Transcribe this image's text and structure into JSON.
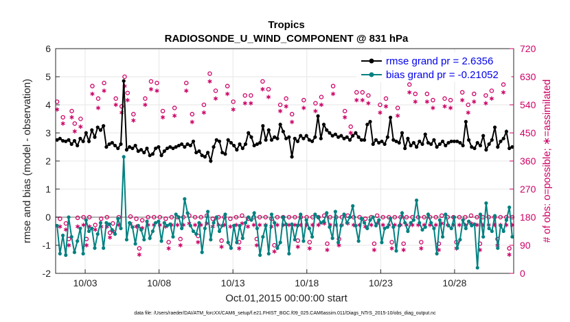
{
  "chart_data": {
    "type": "line",
    "title": "Tropics",
    "subtitle": "RADIOSONDE_U_WIND_COMPONENT @ 831 hPa",
    "xlabel": "Oct.01,2015 00:00:00 start",
    "ylabel_left": "rmse and bias (model - observation)",
    "ylabel_right": "# of obs: o=possible; ∗=assimilated",
    "footnote": "data file: /Users/raeder/DAI/ATM_forcXX/CAM6_setup/f.e21.FHIST_BGC.f09_025.CAM6assim.011/Diags_NTrS_2015-10/obs_diag_output.nc",
    "x_ticks": [
      "10/03",
      "10/08",
      "10/13",
      "10/18",
      "10/23",
      "10/28"
    ],
    "x_tick_days": [
      3,
      8,
      13,
      18,
      23,
      28
    ],
    "xlim_days": [
      1,
      32
    ],
    "ylim_left": [
      -2,
      6
    ],
    "yticks_left": [
      "-2",
      "-1",
      "0",
      "1",
      "2",
      "3",
      "4",
      "5",
      "6"
    ],
    "ylim_right": [
      0,
      720
    ],
    "yticks_right": [
      "0",
      "90",
      "180",
      "270",
      "360",
      "450",
      "540",
      "630",
      "720"
    ],
    "legend": [
      {
        "label": "rmse grand pr = 2.6356",
        "color": "#000000"
      },
      {
        "label": "bias grand pr = -0.21052",
        "color": "#008080"
      }
    ],
    "series": [
      {
        "name": "rmse",
        "axis": "left",
        "color": "#000000",
        "values": [
          2.75,
          2.8,
          2.72,
          2.7,
          2.75,
          2.6,
          2.72,
          2.55,
          2.8,
          2.7,
          3.0,
          2.7,
          3.1,
          2.85,
          3.2,
          3.1,
          3.25,
          2.5,
          2.6,
          2.65,
          2.55,
          2.45,
          2.6,
          4.85,
          2.4,
          2.5,
          2.45,
          2.55,
          2.35,
          2.4,
          2.3,
          2.45,
          2.2,
          2.25,
          2.45,
          2.5,
          2.2,
          2.35,
          2.45,
          2.5,
          2.45,
          2.5,
          2.55,
          2.6,
          2.5,
          2.6,
          2.55,
          2.7,
          2.3,
          2.35,
          2.2,
          2.15,
          2.3,
          2.0,
          2.5,
          2.75,
          2.7,
          2.3,
          2.25,
          2.75,
          2.65,
          2.55,
          2.4,
          2.6,
          2.45,
          2.6,
          3.0,
          2.85,
          2.55,
          2.6,
          2.65,
          3.25,
          2.75,
          3.1,
          2.75,
          2.85,
          2.8,
          3.3,
          3.05,
          2.8,
          2.85,
          2.15,
          2.8,
          2.7,
          2.9,
          2.8,
          2.9,
          2.75,
          2.7,
          2.85,
          3.6,
          2.8,
          3.3,
          3.1,
          3.0,
          2.9,
          2.95,
          2.85,
          2.9,
          2.8,
          2.85,
          2.75,
          2.9,
          3.0,
          2.85,
          2.75,
          2.75,
          3.3,
          3.4,
          2.6,
          2.75,
          2.65,
          2.7,
          2.6,
          2.85,
          3.55,
          2.75,
          2.7,
          2.65,
          3.0,
          2.45,
          2.8,
          2.55,
          2.65,
          2.5,
          2.7,
          2.6,
          2.95,
          2.65,
          2.6,
          2.75,
          2.5,
          2.6,
          2.7,
          2.55,
          2.65,
          2.7,
          2.7,
          2.7,
          2.65,
          2.55,
          3.4,
          2.75,
          2.5,
          2.45,
          2.65,
          2.55,
          2.9,
          2.4,
          2.6,
          2.75,
          3.2,
          2.5,
          2.7,
          2.8,
          3.05,
          2.45,
          2.5
        ]
      },
      {
        "name": "bias",
        "axis": "left",
        "color": "#008080",
        "values": [
          -0.3,
          -1.3,
          -0.65,
          -1.35,
          0.0,
          -0.7,
          -1.25,
          -0.85,
          -0.4,
          -1.3,
          -0.1,
          -0.5,
          -0.4,
          -1.1,
          -0.6,
          -0.2,
          -1.1,
          -0.2,
          -0.25,
          -0.45,
          -0.6,
          -0.05,
          -0.4,
          2.15,
          -0.8,
          -0.2,
          -0.35,
          -0.95,
          -0.3,
          -0.45,
          -0.8,
          -0.15,
          -0.75,
          -0.5,
          -0.2,
          -0.15,
          -0.85,
          -0.2,
          -0.3,
          -0.25,
          -0.7,
          0.1,
          0.0,
          -0.4,
          0.65,
          0.15,
          -0.3,
          -0.5,
          -0.6,
          -0.2,
          -1.25,
          -0.4,
          0.2,
          -0.8,
          -0.2,
          0.0,
          -0.5,
          -0.3,
          0.1,
          -0.9,
          -1.1,
          -0.3,
          -0.9,
          -0.3,
          -0.75,
          -0.2,
          0.0,
          -0.1,
          0.15,
          -0.4,
          -1.35,
          -0.7,
          -0.3,
          -1.3,
          0.1,
          -0.2,
          -1.1,
          -0.9,
          0.0,
          -0.25,
          -1.3,
          -0.25,
          -0.8,
          -0.3,
          0.1,
          -0.85,
          -0.1,
          -0.4,
          -0.7,
          0.1,
          0.0,
          -0.2,
          -0.15,
          0.15,
          -0.35,
          -0.75,
          0.2,
          -0.9,
          -0.3,
          0.1,
          -0.2,
          0.0,
          0.4,
          -0.3,
          -0.85,
          -0.05,
          -0.2,
          -0.4,
          -0.1,
          0.0,
          -0.3,
          -0.1,
          -0.9,
          -0.4,
          -0.35,
          -0.05,
          -0.35,
          -1.2,
          -0.3,
          0.15,
          -0.2,
          -0.5,
          -0.2,
          -0.1,
          0.6,
          -0.2,
          -0.45,
          -0.35,
          0.1,
          -0.2,
          -0.4,
          -1.3,
          -0.1,
          -0.7,
          0.1,
          -0.3,
          -0.4,
          0.0,
          -1.1,
          -0.8,
          -0.1,
          -0.4,
          -0.15,
          -0.3,
          -0.25,
          -1.8,
          0.1,
          -0.7,
          0.5,
          -0.4,
          -0.5,
          0.05,
          -1.1,
          -0.3,
          -0.5,
          -0.1,
          0.35,
          -0.7
        ]
      },
      {
        "name": "obs_possible",
        "axis": "right",
        "marker": "o",
        "color": "#cc0066",
        "values": [
          550,
          175,
          500,
          160,
          110,
          520,
          480,
          178,
          495,
          180,
          110,
          180,
          600,
          155,
          560,
          175,
          610,
          180,
          130,
          160,
          560,
          180,
          535,
          630,
          578,
          182,
          510,
          175,
          80,
          170,
          560,
          180,
          615,
          180,
          610,
          180,
          520,
          175,
          100,
          180,
          530,
          180,
          110,
          180,
          610,
          185,
          510,
          180,
          120,
          180,
          540,
          185,
          640,
          175,
          585,
          180,
          105,
          180,
          600,
          175,
          550,
          180,
          100,
          185,
          570,
          175,
          570,
          180,
          110,
          180,
          615,
          180,
          590,
          175,
          90,
          180,
          540,
          180,
          560,
          180,
          510,
          180,
          105,
          180,
          555,
          180,
          100,
          180,
          545,
          180,
          565,
          185,
          95,
          180,
          600,
          180,
          110,
          180,
          520,
          185,
          470,
          180,
          580,
          180,
          580,
          175,
          570,
          180,
          95,
          185,
          540,
          180,
          560,
          180,
          100,
          180,
          530,
          180,
          95,
          180,
          605,
          180,
          575,
          180,
          100,
          180,
          575,
          180,
          555,
          180,
          95,
          185,
          560,
          180,
          555,
          180,
          100,
          180,
          580,
          180,
          540,
          185,
          575,
          180,
          95,
          180,
          570,
          180,
          585,
          180,
          110,
          180,
          605,
          180,
          80,
          180
        ]
      },
      {
        "name": "obs_assimilated",
        "axis": "right",
        "marker": "*",
        "color": "#cc0066",
        "values": [
          525,
          150,
          480,
          140,
          90,
          500,
          455,
          150,
          470,
          155,
          90,
          150,
          575,
          140,
          530,
          150,
          585,
          150,
          115,
          135,
          540,
          155,
          515,
          600,
          555,
          160,
          490,
          150,
          60,
          145,
          540,
          155,
          590,
          155,
          585,
          155,
          500,
          150,
          80,
          155,
          505,
          155,
          90,
          155,
          585,
          160,
          485,
          155,
          100,
          155,
          515,
          160,
          615,
          150,
          560,
          155,
          85,
          155,
          575,
          150,
          525,
          155,
          80,
          160,
          545,
          150,
          545,
          155,
          90,
          155,
          590,
          155,
          565,
          150,
          70,
          155,
          520,
          155,
          535,
          155,
          485,
          155,
          85,
          155,
          530,
          155,
          80,
          155,
          520,
          155,
          540,
          160,
          75,
          155,
          575,
          155,
          90,
          155,
          500,
          160,
          450,
          155,
          555,
          155,
          555,
          150,
          545,
          155,
          75,
          160,
          515,
          155,
          535,
          155,
          80,
          155,
          505,
          155,
          75,
          155,
          580,
          155,
          550,
          155,
          80,
          155,
          550,
          155,
          530,
          155,
          75,
          160,
          535,
          155,
          530,
          155,
          80,
          155,
          555,
          155,
          515,
          160,
          550,
          155,
          75,
          155,
          545,
          155,
          560,
          155,
          90,
          155,
          580,
          155,
          60,
          155
        ]
      }
    ]
  }
}
